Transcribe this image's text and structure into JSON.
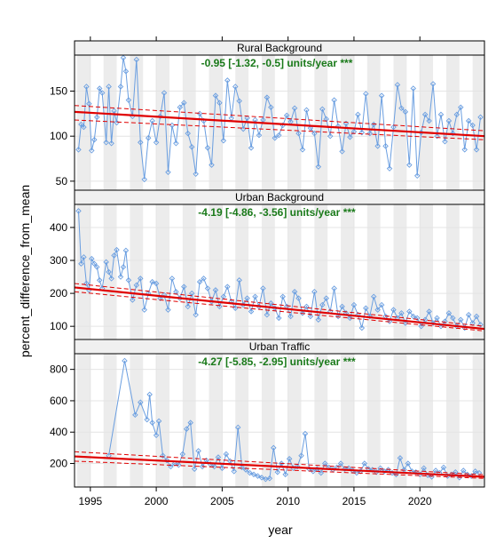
{
  "chart_data": {
    "type": "line",
    "xlabel": "year",
    "ylabel": "percent_difference_from_mean",
    "xlim": [
      1993.8,
      2024.9
    ],
    "x_ticks": [
      1995,
      2000,
      2005,
      2010,
      2015,
      2020
    ],
    "x_tick_labels": [
      "1995",
      "2000",
      "2005",
      "2010",
      "2015",
      "2020"
    ],
    "colors": {
      "data_line": "#6a9ee0",
      "trend": "#e00000",
      "annotation": "#1a7a1a",
      "strip_bg": "#f0f0f0",
      "stripe": "#ececec"
    },
    "panels": [
      {
        "title": "Rural Background",
        "annotation": "-0.95 [-1.32, -0.5] units/year ***",
        "ylim": [
          40,
          190
        ],
        "y_ticks": [
          50,
          100,
          150
        ],
        "y_tick_labels": [
          "50",
          "100",
          "150"
        ],
        "trend": {
          "start": [
            1993.8,
            127
          ],
          "end": [
            2024.9,
            100
          ],
          "ci_low": [
            118,
            96
          ],
          "ci_high": [
            134,
            106
          ]
        },
        "series": {
          "name": "Rural Background",
          "x": [
            1994.1,
            1994.3,
            1994.5,
            1994.7,
            1994.9,
            1995.1,
            1995.3,
            1995.5,
            1995.7,
            1995.9,
            1996.2,
            1996.4,
            1996.6,
            1996.8,
            1997.0,
            1997.3,
            1997.5,
            1997.7,
            1997.9,
            1998.2,
            1998.5,
            1998.8,
            1999.1,
            1999.4,
            1999.7,
            2000.0,
            2000.3,
            2000.6,
            2000.9,
            2001.2,
            2001.5,
            2001.8,
            2002.1,
            2002.4,
            2002.7,
            2003.0,
            2003.3,
            2003.6,
            2003.9,
            2004.2,
            2004.5,
            2004.8,
            2005.1,
            2005.4,
            2005.7,
            2006.0,
            2006.3,
            2006.6,
            2006.9,
            2007.2,
            2007.5,
            2007.8,
            2008.1,
            2008.4,
            2008.7,
            2009.0,
            2009.3,
            2009.6,
            2009.9,
            2010.2,
            2010.5,
            2010.8,
            2011.1,
            2011.4,
            2011.7,
            2012.0,
            2012.3,
            2012.6,
            2012.9,
            2013.2,
            2013.5,
            2013.8,
            2014.1,
            2014.4,
            2014.7,
            2015.0,
            2015.3,
            2015.6,
            2015.9,
            2016.2,
            2016.5,
            2016.8,
            2017.1,
            2017.4,
            2017.7,
            2018.0,
            2018.3,
            2018.6,
            2018.9,
            2019.2,
            2019.5,
            2019.8,
            2020.1,
            2020.4,
            2020.7,
            2021.0,
            2021.3,
            2021.6,
            2021.9,
            2022.2,
            2022.5,
            2022.8,
            2023.1,
            2023.4,
            2023.7,
            2024.0,
            2024.3,
            2024.6
          ],
          "y": [
            85,
            113,
            110,
            155,
            136,
            84,
            96,
            121,
            153,
            148,
            93,
            155,
            92,
            128,
            115,
            155,
            187,
            172,
            140,
            122,
            185,
            93,
            52,
            98,
            117,
            93,
            122,
            148,
            60,
            112,
            92,
            132,
            137,
            103,
            88,
            58,
            125,
            117,
            87,
            68,
            145,
            137,
            95,
            162,
            120,
            155,
            139,
            108,
            120,
            87,
            118,
            101,
            118,
            143,
            132,
            98,
            101,
            112,
            123,
            116,
            131,
            103,
            85,
            129,
            109,
            103,
            66,
            130,
            119,
            100,
            140,
            111,
            83,
            114,
            99,
            105,
            124,
            104,
            147,
            103,
            113,
            89,
            145,
            89,
            64,
            110,
            157,
            131,
            127,
            68,
            153,
            56,
            104,
            124,
            117,
            158,
            100,
            124,
            94,
            117,
            103,
            124,
            132,
            85,
            117,
            112,
            85,
            121
          ]
        }
      },
      {
        "title": "Urban Background",
        "annotation": "-4.19 [-4.86, -3.56] units/year ***",
        "ylim": [
          60,
          470
        ],
        "y_ticks": [
          100,
          200,
          300,
          400
        ],
        "y_tick_labels": [
          "100",
          "200",
          "300",
          "400"
        ],
        "trend": {
          "start": [
            1993.8,
            218
          ],
          "end": [
            2024.9,
            92
          ],
          "ci_low": [
            205,
            86
          ],
          "ci_high": [
            230,
            100
          ]
        },
        "series": {
          "name": "Urban Background",
          "x": [
            1994.1,
            1994.3,
            1994.5,
            1994.7,
            1994.9,
            1995.1,
            1995.3,
            1995.5,
            1995.7,
            1995.9,
            1996.2,
            1996.4,
            1996.6,
            1996.8,
            1997.0,
            1997.3,
            1997.5,
            1997.7,
            1997.9,
            1998.2,
            1998.5,
            1998.8,
            1999.1,
            1999.4,
            1999.7,
            2000.0,
            2000.3,
            2000.6,
            2000.9,
            2001.2,
            2001.5,
            2001.8,
            2002.1,
            2002.4,
            2002.7,
            2003.0,
            2003.3,
            2003.6,
            2003.9,
            2004.2,
            2004.5,
            2004.8,
            2005.1,
            2005.4,
            2005.7,
            2006.0,
            2006.3,
            2006.6,
            2006.9,
            2007.2,
            2007.5,
            2007.8,
            2008.1,
            2008.4,
            2008.7,
            2009.0,
            2009.3,
            2009.6,
            2009.9,
            2010.2,
            2010.5,
            2010.8,
            2011.1,
            2011.4,
            2011.7,
            2012.0,
            2012.3,
            2012.6,
            2012.9,
            2013.2,
            2013.5,
            2013.8,
            2014.1,
            2014.4,
            2014.7,
            2015.0,
            2015.3,
            2015.6,
            2015.9,
            2016.2,
            2016.5,
            2016.8,
            2017.1,
            2017.4,
            2017.7,
            2018.0,
            2018.3,
            2018.6,
            2018.9,
            2019.2,
            2019.5,
            2019.8,
            2020.1,
            2020.4,
            2020.7,
            2021.0,
            2021.3,
            2021.6,
            2021.9,
            2022.2,
            2022.5,
            2022.8,
            2023.1,
            2023.4,
            2023.7,
            2024.0,
            2024.3,
            2024.6
          ],
          "y": [
            450,
            290,
            310,
            230,
            210,
            305,
            290,
            280,
            240,
            215,
            295,
            265,
            245,
            315,
            332,
            250,
            280,
            330,
            240,
            180,
            225,
            245,
            150,
            200,
            235,
            230,
            185,
            195,
            150,
            245,
            205,
            185,
            220,
            160,
            200,
            135,
            235,
            245,
            215,
            175,
            210,
            160,
            190,
            220,
            175,
            155,
            240,
            165,
            185,
            145,
            190,
            160,
            215,
            135,
            170,
            155,
            125,
            190,
            160,
            130,
            205,
            185,
            140,
            160,
            130,
            205,
            120,
            165,
            185,
            145,
            215,
            130,
            160,
            140,
            125,
            165,
            135,
            95,
            155,
            130,
            190,
            150,
            165,
            130,
            115,
            150,
            125,
            140,
            110,
            145,
            130,
            125,
            100,
            120,
            145,
            110,
            125,
            100,
            115,
            140,
            125,
            100,
            120,
            95,
            135,
            110,
            130,
            105
          ]
        }
      },
      {
        "title": "Urban Traffic",
        "annotation": "-4.27 [-5.85, -2.95] units/year ***",
        "ylim": [
          50,
          900
        ],
        "y_ticks": [
          200,
          400,
          600,
          800
        ],
        "y_tick_labels": [
          "200",
          "400",
          "600",
          "800"
        ],
        "trend": {
          "start": [
            1993.8,
            245
          ],
          "end": [
            2024.9,
            115
          ],
          "ci_low": [
            215,
            105
          ],
          "ci_high": [
            275,
            128
          ]
        },
        "series": {
          "name": "Urban Traffic",
          "x": [
            1996.4,
            1997.6,
            1998.4,
            1998.8,
            1999.3,
            1999.5,
            1999.7,
            2000.0,
            2000.2,
            2000.5,
            2000.8,
            2001.1,
            2001.4,
            2001.7,
            2002.0,
            2002.3,
            2002.6,
            2002.9,
            2003.2,
            2003.5,
            2003.8,
            2004.1,
            2004.4,
            2004.7,
            2005.0,
            2005.3,
            2005.6,
            2005.9,
            2006.2,
            2006.5,
            2006.8,
            2007.1,
            2007.4,
            2007.7,
            2008.0,
            2008.3,
            2008.6,
            2008.9,
            2009.2,
            2009.5,
            2009.8,
            2010.1,
            2010.4,
            2010.7,
            2011.0,
            2011.3,
            2011.6,
            2011.9,
            2012.2,
            2012.5,
            2012.8,
            2013.1,
            2013.4,
            2013.7,
            2014.0,
            2014.3,
            2014.6,
            2014.9,
            2015.2,
            2015.5,
            2015.8,
            2016.1,
            2016.4,
            2016.7,
            2017.0,
            2017.3,
            2017.6,
            2017.9,
            2018.2,
            2018.5,
            2018.8,
            2019.1,
            2019.4,
            2019.7,
            2020.0,
            2020.3,
            2020.6,
            2020.9,
            2021.2,
            2021.5,
            2021.8,
            2022.1,
            2022.4,
            2022.7,
            2023.0,
            2023.3,
            2023.6,
            2023.9,
            2024.2,
            2024.5
          ],
          "y": [
            250,
            855,
            510,
            590,
            480,
            640,
            460,
            380,
            470,
            250,
            220,
            180,
            200,
            190,
            260,
            420,
            460,
            165,
            280,
            180,
            220,
            195,
            180,
            240,
            170,
            260,
            215,
            150,
            430,
            175,
            160,
            140,
            130,
            120,
            110,
            100,
            105,
            300,
            145,
            200,
            130,
            230,
            170,
            180,
            250,
            390,
            165,
            150,
            165,
            140,
            200,
            175,
            160,
            175,
            200,
            165,
            170,
            155,
            140,
            150,
            200,
            165,
            160,
            145,
            170,
            150,
            160,
            140,
            130,
            235,
            160,
            200,
            150,
            145,
            130,
            170,
            125,
            115,
            155,
            140,
            175,
            120,
            130,
            145,
            110,
            155,
            130,
            120,
            150,
            140
          ]
        }
      }
    ]
  }
}
